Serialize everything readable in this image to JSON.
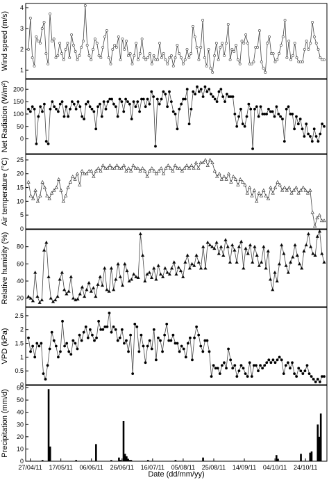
{
  "chart_data": [
    {
      "type": "line",
      "ylabel": "Wind speed (m/s)",
      "ylim": [
        0.6,
        4.2
      ],
      "yticks": [
        1,
        2,
        3,
        4
      ],
      "marker": "open-circle",
      "series": [
        {
          "values": [
            2.0,
            3.5,
            1.6,
            1.2,
            2.6,
            2.4,
            2.3,
            3.0,
            3.3,
            1.8,
            1.3,
            3.7,
            2.4,
            2.5,
            1.6,
            1.7,
            2.3,
            1.8,
            1.5,
            2.0,
            2.3,
            1.6,
            2.7,
            2.2,
            1.9,
            1.5,
            1.7,
            2.1,
            2.4,
            4.1,
            2.2,
            1.7,
            1.5,
            2.0,
            2.5,
            2.3,
            1.7,
            1.6,
            2.1,
            2.6,
            2.9,
            1.6,
            1.3,
            2.0,
            2.2,
            2.1,
            2.6,
            1.5,
            2.5,
            2.0,
            2.4,
            1.7,
            1.8,
            1.3,
            1.7,
            2.3,
            1.5,
            1.8,
            2.5,
            1.6,
            1.5,
            1.6,
            1.8,
            1.3,
            1.7,
            1.5,
            1.5,
            2.3,
            1.6,
            1.8,
            1.5,
            1.3,
            1.6,
            1.7,
            1.2,
            1.6,
            2.2,
            1.8,
            1.6,
            1.3,
            1.5,
            2.0,
            1.6,
            1.8,
            3.1,
            2.6,
            2.1,
            1.5,
            2.1,
            3.4,
            1.6,
            1.2,
            2.0,
            1.1,
            0.9,
            1.7,
            2.3,
            1.5,
            2.1,
            2.3,
            1.7,
            2.3,
            3.2,
            1.5,
            2.0,
            1.9,
            2.2,
            1.5,
            1.3,
            2.4,
            2.3,
            2.7,
            2.3,
            1.3,
            1.3,
            1.4,
            2.1,
            2.1,
            2.9,
            1.4,
            1.1,
            0.9,
            2.3,
            2.6,
            1.8,
            1.8,
            1.4,
            1.5,
            1.8,
            2.2,
            2.6,
            3.4,
            1.6,
            2.4,
            1.5,
            1.7,
            2.3,
            1.6,
            1.4,
            1.4,
            1.4,
            2.0,
            2.4,
            2.0,
            2.3,
            3.3,
            2.6,
            2.3,
            2.0,
            1.6,
            1.5,
            1.5
          ]
        }
      ]
    },
    {
      "type": "line",
      "ylabel": "Net Radiation (W/m²)",
      "ylim": [
        -60,
        240
      ],
      "yticks": [
        0,
        50,
        100,
        150,
        200
      ],
      "marker": "filled-circle",
      "series": [
        {
          "values": [
            120,
            110,
            130,
            120,
            -20,
            90,
            130,
            110,
            140,
            -10,
            -20,
            120,
            150,
            130,
            120,
            110,
            140,
            150,
            90,
            130,
            90,
            120,
            150,
            140,
            120,
            150,
            130,
            90,
            80,
            140,
            150,
            130,
            120,
            110,
            40,
            130,
            140,
            90,
            150,
            120,
            150,
            160,
            160,
            140,
            130,
            90,
            160,
            150,
            110,
            160,
            150,
            140,
            80,
            150,
            130,
            150,
            110,
            160,
            160,
            130,
            160,
            140,
            190,
            170,
            -30,
            160,
            140,
            160,
            190,
            180,
            130,
            190,
            150,
            110,
            100,
            40,
            120,
            140,
            160,
            160,
            200,
            60,
            120,
            190,
            180,
            210,
            190,
            200,
            170,
            210,
            190,
            200,
            180,
            170,
            160,
            150,
            190,
            200,
            170,
            150,
            180,
            170,
            170,
            170,
            100,
            50,
            90,
            120,
            60,
            50,
            90,
            140,
            120,
            -40,
            120,
            130,
            90,
            130,
            100,
            100,
            100,
            120,
            110,
            110,
            90,
            130,
            100,
            90,
            80,
            -10,
            120,
            130,
            100,
            100,
            40,
            90,
            60,
            80,
            40,
            10,
            60,
            20,
            10,
            -10,
            40,
            10,
            -10,
            20,
            60,
            50
          ]
        }
      ]
    },
    {
      "type": "line",
      "ylabel": "Air temperature (°C)",
      "ylim": [
        0,
        27
      ],
      "yticks": [
        0,
        5,
        10,
        15,
        20,
        25
      ],
      "marker": "open-triangle",
      "series": [
        {
          "values": [
            17,
            12,
            11,
            14,
            10,
            12,
            17,
            15,
            12,
            11,
            13,
            14,
            15,
            18,
            14,
            10,
            12,
            15,
            17,
            19,
            18,
            20,
            16,
            21,
            20,
            20,
            21,
            21,
            19,
            21,
            22,
            21,
            23,
            22,
            22,
            23,
            22,
            22,
            23,
            22,
            22,
            23,
            21,
            22,
            21,
            23,
            22,
            22,
            21,
            22,
            21,
            19,
            21,
            22,
            21,
            20,
            21,
            22,
            20,
            22,
            23,
            22,
            21,
            23,
            22,
            22,
            21,
            22,
            23,
            22,
            23,
            22,
            24,
            22,
            24,
            24,
            25,
            23,
            25,
            24,
            21,
            19,
            20,
            18,
            19,
            18,
            20,
            17,
            19,
            18,
            16,
            18,
            17,
            16,
            13,
            15,
            12,
            14,
            10,
            13,
            12,
            14,
            12,
            11,
            15,
            13,
            15,
            17,
            16,
            14,
            15,
            14,
            15,
            13,
            14,
            15,
            13,
            14,
            15,
            14,
            13,
            14,
            6,
            1,
            4,
            5,
            3,
            3
          ]
        }
      ]
    },
    {
      "type": "line",
      "ylabel": "Relative humidity (%)",
      "ylim": [
        10,
        100
      ],
      "yticks": [
        20,
        40,
        60,
        80
      ],
      "marker": "filled-triangle",
      "series": [
        {
          "values": [
            22,
            20,
            17,
            50,
            22,
            15,
            18,
            76,
            85,
            45,
            20,
            16,
            18,
            22,
            42,
            50,
            30,
            25,
            28,
            45,
            20,
            18,
            19,
            25,
            33,
            22,
            30,
            38,
            28,
            32,
            22,
            36,
            45,
            35,
            55,
            30,
            28,
            55,
            30,
            42,
            60,
            45,
            35,
            60,
            52,
            40,
            42,
            48,
            45,
            44,
            95,
            70,
            40,
            48,
            50,
            44,
            55,
            42,
            58,
            48,
            45,
            55,
            50,
            48,
            55,
            62,
            48,
            56,
            52,
            45,
            62,
            70,
            55,
            60,
            58,
            70,
            62,
            55,
            80,
            55,
            85,
            82,
            80,
            78,
            85,
            72,
            80,
            70,
            88,
            80,
            62,
            82,
            76,
            62,
            80,
            86,
            55,
            78,
            72,
            82,
            62,
            80,
            70,
            58,
            62,
            80,
            55,
            75,
            42,
            30,
            50,
            40,
            60,
            82,
            72,
            58,
            50,
            62,
            68,
            82,
            70,
            60,
            55,
            75,
            82,
            95,
            80,
            72,
            70,
            92,
            98,
            72,
            62
          ]
        }
      ]
    },
    {
      "type": "line",
      "ylabel": "VPD (kPa)",
      "ylim": [
        0,
        2.8
      ],
      "yticks": [
        0,
        0.5,
        1,
        1.5,
        2,
        2.5
      ],
      "marker": "filled-circle",
      "series": [
        {
          "values": [
            1.7,
            1.2,
            1.4,
            1.0,
            1.5,
            1.4,
            1.5,
            0.4,
            0.2,
            0.7,
            1.3,
            1.9,
            1.6,
            1.4,
            1.0,
            1.2,
            2.3,
            1.4,
            1.5,
            1.2,
            1.1,
            1.6,
            1.5,
            1.3,
            1.8,
            1.6,
            1.9,
            2.1,
            1.7,
            2.0,
            1.8,
            1.6,
            1.7,
            2.3,
            2.0,
            2.0,
            2.1,
            2.1,
            2.6,
            1.9,
            2.1,
            2.0,
            1.6,
            1.7,
            2.0,
            1.5,
            1.6,
            1.2,
            1.8,
            0.4,
            2.2,
            2.1,
            1.2,
            1.8,
            1.4,
            0.8,
            1.4,
            1.6,
            1.3,
            2.0,
            0.9,
            1.7,
            1.6,
            1.2,
            1.8,
            2.2,
            1.6,
            1.6,
            1.8,
            1.5,
            1.5,
            1.2,
            1.4,
            1.3,
            1.0,
            1.5,
            1.7,
            0.9,
            1.7,
            2.1,
            1.8,
            1.4,
            1.2,
            1.6,
            1.6,
            1.2,
            0.3,
            0.7,
            0.6,
            0.6,
            0.4,
            0.7,
            0.8,
            0.6,
            1.3,
            0.9,
            0.6,
            0.7,
            0.3,
            0.5,
            0.7,
            0.6,
            0.4,
            0.3,
            0.8,
            0.3,
            0.7,
            0.7,
            0.5,
            0.7,
            0.6,
            0.7,
            0.8,
            0.9,
            0.8,
            0.9,
            0.8,
            0.9,
            1.0,
            0.9,
            0.4,
            0.7,
            0.8,
            0.6,
            0.8,
            0.4,
            0.3,
            0.6,
            0.5,
            0.4,
            0.5,
            0.7,
            0.4,
            0.3,
            0.2,
            0.1,
            0.2,
            0.1,
            0.3,
            0.3
          ]
        }
      ]
    },
    {
      "type": "bar",
      "ylabel": "Precipitation (mm/d)",
      "xlabel": "Date (dd/mm/yy)",
      "ylim": [
        0,
        62
      ],
      "yticks": [
        0,
        10,
        20,
        30,
        40,
        50,
        60
      ],
      "x_tick_labels": [
        "27/04/11",
        "17/05/11",
        "06/06/11",
        "26/06/11",
        "16/07/11",
        "05/08/11",
        "25/08/11",
        "14/09/11",
        "04/10/11",
        "24/10/11"
      ],
      "x_tick_days": [
        0,
        20,
        40,
        60,
        80,
        100,
        120,
        140,
        160,
        180
      ],
      "x_range_days": [
        -3,
        194
      ],
      "bars": [
        {
          "day": 8,
          "value": 1
        },
        {
          "day": 12,
          "value": 59
        },
        {
          "day": 13,
          "value": 12
        },
        {
          "day": 30,
          "value": 1
        },
        {
          "day": 43,
          "value": 14
        },
        {
          "day": 53,
          "value": 1
        },
        {
          "day": 58,
          "value": 3
        },
        {
          "day": 59,
          "value": 1
        },
        {
          "day": 61,
          "value": 33
        },
        {
          "day": 62,
          "value": 6
        },
        {
          "day": 63,
          "value": 4
        },
        {
          "day": 64,
          "value": 2
        },
        {
          "day": 65,
          "value": 1
        },
        {
          "day": 66,
          "value": 1
        },
        {
          "day": 77,
          "value": 1
        },
        {
          "day": 95,
          "value": 1
        },
        {
          "day": 113,
          "value": 3
        },
        {
          "day": 161,
          "value": 5
        },
        {
          "day": 162,
          "value": 2
        },
        {
          "day": 177,
          "value": 6
        },
        {
          "day": 183,
          "value": 7
        },
        {
          "day": 184,
          "value": 8
        },
        {
          "day": 188,
          "value": 30
        },
        {
          "day": 189,
          "value": 20
        },
        {
          "day": 190,
          "value": 39
        }
      ]
    }
  ]
}
